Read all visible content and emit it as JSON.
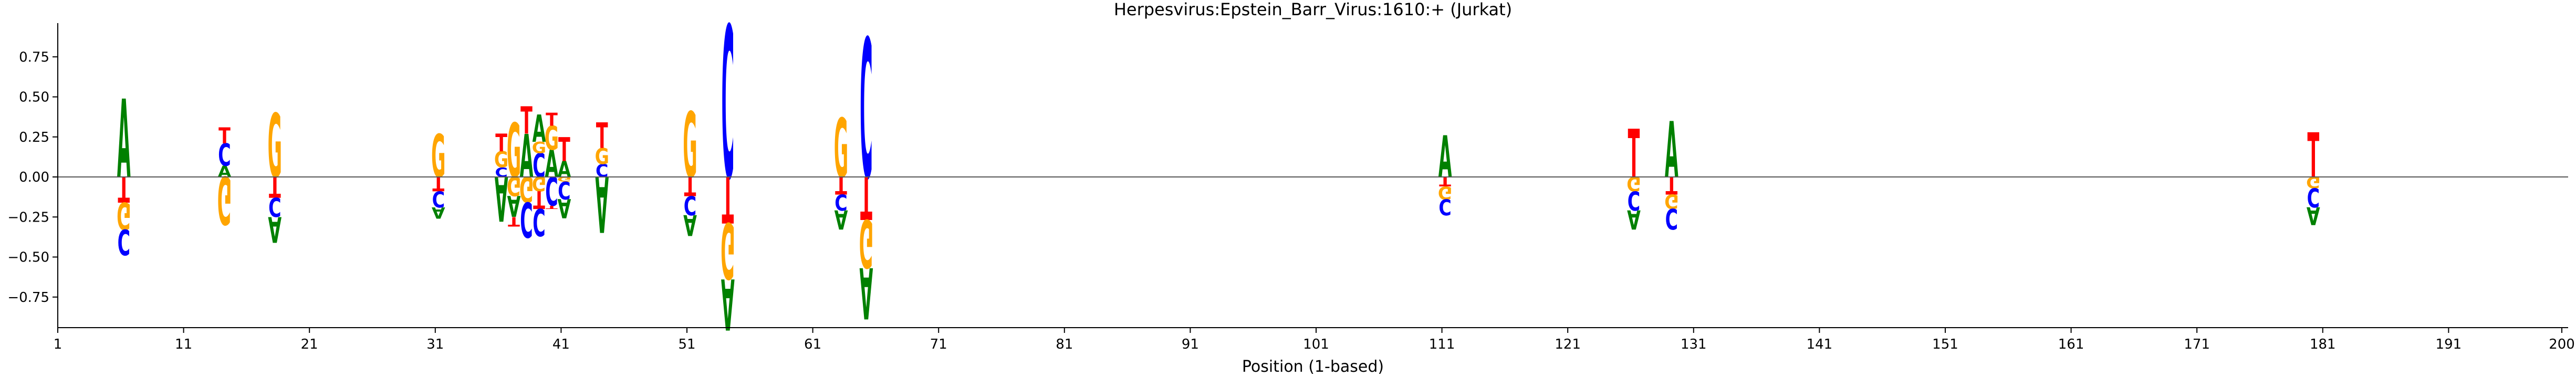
{
  "chart_data": {
    "type": "sequence-logo",
    "title": "Herpesvirus:Epstein_Barr_Virus:1610:+  (Jurkat)",
    "xlabel": "Position (1-based)",
    "ylabel": "",
    "xlim": [
      1,
      200
    ],
    "ylim": [
      -0.95,
      0.95
    ],
    "x_ticks": [
      1,
      11,
      21,
      31,
      41,
      51,
      61,
      71,
      81,
      91,
      101,
      111,
      121,
      131,
      141,
      151,
      161,
      171,
      181,
      191,
      200
    ],
    "y_ticks": [
      -0.75,
      -0.5,
      -0.25,
      0.0,
      0.25,
      0.5,
      0.75
    ],
    "y_tick_labels": [
      "−0.75",
      "−0.50",
      "−0.25",
      "0.00",
      "0.25",
      "0.50",
      "0.75"
    ],
    "base_colors": {
      "A": "#008000",
      "C": "#0000ff",
      "G": "#ffa500",
      "T": "#ff0000"
    },
    "zero_line": true,
    "grid": false,
    "positions": [
      {
        "pos": 6,
        "up": [
          [
            "A",
            0.49
          ]
        ],
        "down": [
          [
            "T",
            0.16
          ],
          [
            "G",
            0.17
          ],
          [
            "C",
            0.16
          ]
        ]
      },
      {
        "pos": 14,
        "up": [
          [
            "A",
            0.07
          ],
          [
            "C",
            0.14
          ],
          [
            "T",
            0.1
          ]
        ],
        "down": [
          [
            "G",
            0.3
          ]
        ]
      },
      {
        "pos": 18,
        "up": [
          [
            "G",
            0.4
          ]
        ],
        "down": [
          [
            "T",
            0.13
          ],
          [
            "C",
            0.12
          ],
          [
            "A",
            0.16
          ]
        ]
      },
      {
        "pos": 31,
        "up": [
          [
            "G",
            0.27
          ]
        ],
        "down": [
          [
            "T",
            0.09
          ],
          [
            "C",
            0.1
          ],
          [
            "A",
            0.07
          ]
        ]
      },
      {
        "pos": 36,
        "up": [
          [
            "C",
            0.06
          ],
          [
            "G",
            0.1
          ],
          [
            "T",
            0.11
          ]
        ],
        "down": [
          [
            "A",
            0.28
          ]
        ]
      },
      {
        "pos": 37,
        "up": [
          [
            "G",
            0.34
          ]
        ],
        "down": [
          [
            "G",
            0.12
          ],
          [
            "A",
            0.13
          ],
          [
            "T",
            0.06
          ]
        ]
      },
      {
        "pos": 38,
        "up": [
          [
            "A",
            0.27
          ],
          [
            "T",
            0.17
          ]
        ],
        "down": [
          [
            "G",
            0.16
          ],
          [
            "C",
            0.22
          ]
        ]
      },
      {
        "pos": 39,
        "up": [
          [
            "C",
            0.15
          ],
          [
            "G",
            0.07
          ],
          [
            "A",
            0.17
          ]
        ],
        "down": [
          [
            "G",
            0.09
          ],
          [
            "T",
            0.11
          ],
          [
            "C",
            0.17
          ]
        ]
      },
      {
        "pos": 40,
        "up": [
          [
            "A",
            0.17
          ],
          [
            "G",
            0.15
          ],
          [
            "T",
            0.08
          ]
        ],
        "down": [
          [
            "C",
            0.18
          ],
          [
            "T",
            0.02
          ]
        ]
      },
      {
        "pos": 41,
        "up": [
          [
            "A",
            0.1
          ],
          [
            "T",
            0.15
          ]
        ],
        "down": [
          [
            "G",
            0.03
          ],
          [
            "C",
            0.11
          ],
          [
            "A",
            0.12
          ]
        ]
      },
      {
        "pos": 44,
        "up": [
          [
            "C",
            0.08
          ],
          [
            "G",
            0.1
          ],
          [
            "T",
            0.16
          ]
        ],
        "down": [
          [
            "A",
            0.35
          ]
        ]
      },
      {
        "pos": 51,
        "up": [
          [
            "G",
            0.41
          ]
        ],
        "down": [
          [
            "T",
            0.12
          ],
          [
            "C",
            0.12
          ],
          [
            "A",
            0.13
          ]
        ]
      },
      {
        "pos": 54,
        "up": [
          [
            "C",
            0.95
          ]
        ],
        "down": [
          [
            "T",
            0.29
          ],
          [
            "G",
            0.35
          ],
          [
            "A",
            0.32
          ]
        ]
      },
      {
        "pos": 63,
        "up": [
          [
            "G",
            0.37
          ]
        ],
        "down": [
          [
            "T",
            0.11
          ],
          [
            "C",
            0.1
          ],
          [
            "A",
            0.12
          ]
        ]
      },
      {
        "pos": 65,
        "up": [
          [
            "C",
            0.87
          ]
        ],
        "down": [
          [
            "T",
            0.27
          ],
          [
            "G",
            0.3
          ],
          [
            "A",
            0.32
          ]
        ]
      },
      {
        "pos": 111,
        "up": [
          [
            "A",
            0.26
          ]
        ],
        "down": [
          [
            "T",
            0.06
          ],
          [
            "G",
            0.08
          ],
          [
            "C",
            0.1
          ]
        ]
      },
      {
        "pos": 126,
        "up": [
          [
            "T",
            0.3
          ]
        ],
        "down": [
          [
            "G",
            0.09
          ],
          [
            "C",
            0.12
          ],
          [
            "A",
            0.12
          ]
        ]
      },
      {
        "pos": 129,
        "up": [
          [
            "A",
            0.35
          ]
        ],
        "down": [
          [
            "T",
            0.11
          ],
          [
            "G",
            0.09
          ],
          [
            "C",
            0.13
          ]
        ]
      },
      {
        "pos": 180,
        "up": [
          [
            "T",
            0.28
          ]
        ],
        "down": [
          [
            "G",
            0.07
          ],
          [
            "C",
            0.12
          ],
          [
            "A",
            0.11
          ]
        ]
      }
    ]
  }
}
